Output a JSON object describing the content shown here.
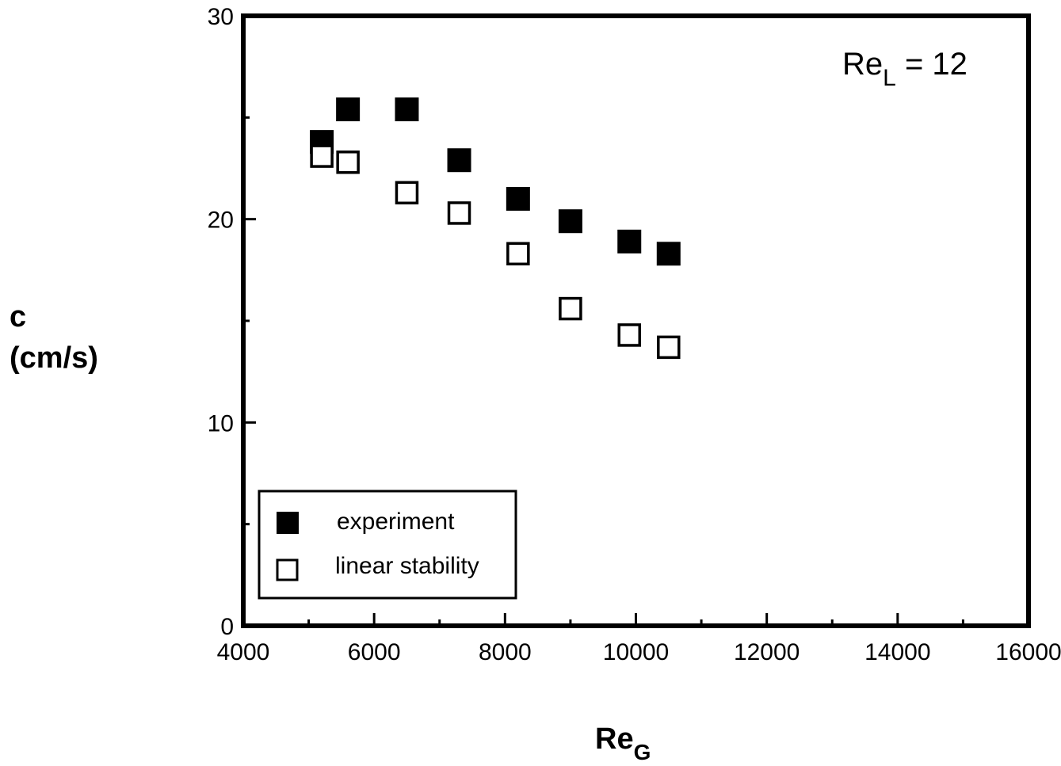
{
  "chart_data": {
    "type": "scatter",
    "title": "",
    "xlabel": {
      "main": "Re",
      "sub": "G"
    },
    "ylabel": {
      "line1": "c",
      "line2": "(cm/s)"
    },
    "xlim": [
      4000,
      16000
    ],
    "ylim": [
      0,
      30
    ],
    "x_ticks": [
      4000,
      6000,
      8000,
      10000,
      12000,
      14000,
      16000
    ],
    "y_ticks": [
      0,
      10,
      20,
      30
    ],
    "x_tick_labels": [
      "4000",
      "6000",
      "8000",
      "10000",
      "12000",
      "14000",
      "16000"
    ],
    "y_tick_labels": [
      "0",
      "10",
      "20",
      "30"
    ],
    "grid": false,
    "annotation": {
      "main": "Re",
      "sub": "L",
      "rest": " = 12",
      "placement": "top-right"
    },
    "legend": {
      "placement": "bottom-left"
    },
    "series": [
      {
        "name": "experiment",
        "marker": "filled-square",
        "color": "#000000",
        "points": [
          {
            "x": 5200,
            "y": 23.8
          },
          {
            "x": 5600,
            "y": 25.4
          },
          {
            "x": 6500,
            "y": 25.4
          },
          {
            "x": 7300,
            "y": 22.9
          },
          {
            "x": 8200,
            "y": 21.0
          },
          {
            "x": 9000,
            "y": 19.9
          },
          {
            "x": 9900,
            "y": 18.9
          },
          {
            "x": 10500,
            "y": 18.3
          }
        ]
      },
      {
        "name": "linear stability",
        "marker": "open-square",
        "color": "#000000",
        "points": [
          {
            "x": 5200,
            "y": 23.1
          },
          {
            "x": 5600,
            "y": 22.8
          },
          {
            "x": 6500,
            "y": 21.3
          },
          {
            "x": 7300,
            "y": 20.3
          },
          {
            "x": 8200,
            "y": 18.3
          },
          {
            "x": 9000,
            "y": 15.6
          },
          {
            "x": 9900,
            "y": 14.3
          },
          {
            "x": 10500,
            "y": 13.7
          }
        ]
      }
    ]
  }
}
